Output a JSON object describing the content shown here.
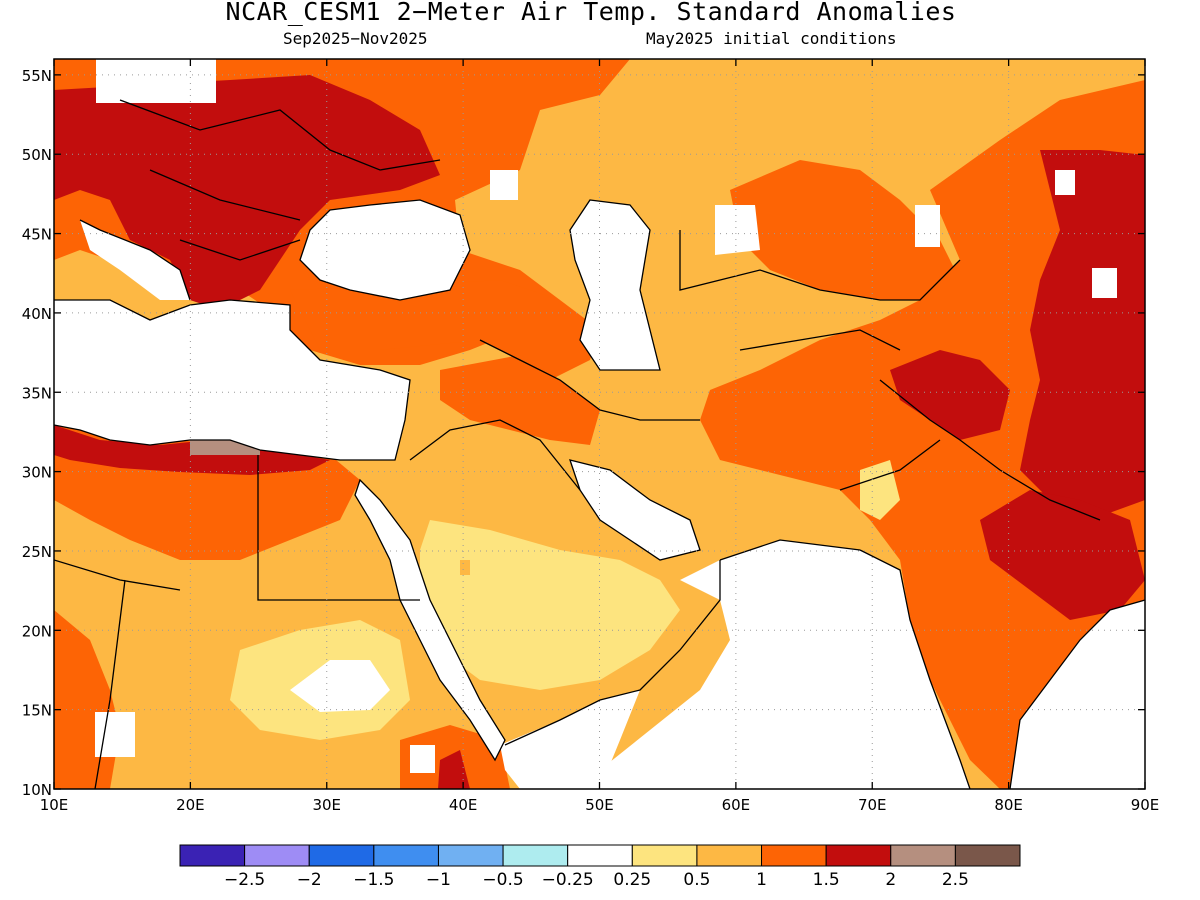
{
  "title": "NCAR_CESM1 2−Meter Air Temp. Standard Anomalies",
  "subtitle_left": "Sep2025−Nov2025",
  "subtitle_right": "May2025 initial conditions",
  "map": {
    "lon_range": [
      10,
      90
    ],
    "lat_range": [
      10,
      56
    ],
    "lon_ticks": [
      {
        "value": 10,
        "label": "10E"
      },
      {
        "value": 20,
        "label": "20E"
      },
      {
        "value": 30,
        "label": "30E"
      },
      {
        "value": 40,
        "label": "40E"
      },
      {
        "value": 50,
        "label": "50E"
      },
      {
        "value": 60,
        "label": "60E"
      },
      {
        "value": 70,
        "label": "70E"
      },
      {
        "value": 80,
        "label": "80E"
      },
      {
        "value": 90,
        "label": "90E"
      }
    ],
    "lat_ticks": [
      {
        "value": 10,
        "label": "10N"
      },
      {
        "value": 15,
        "label": "15N"
      },
      {
        "value": 20,
        "label": "20N"
      },
      {
        "value": 25,
        "label": "25N"
      },
      {
        "value": 30,
        "label": "30N"
      },
      {
        "value": 35,
        "label": "35N"
      },
      {
        "value": 40,
        "label": "40N"
      },
      {
        "value": 45,
        "label": "45N"
      },
      {
        "value": 50,
        "label": "50N"
      },
      {
        "value": 55,
        "label": "55N"
      }
    ],
    "grid": "dotted"
  },
  "legend": {
    "colors": [
      "#3a22b4",
      "#9e8cf5",
      "#1f6ae6",
      "#3f8ef0",
      "#70b0f2",
      "#aeecef",
      "#ffffff",
      "#fde47f",
      "#fdb844",
      "#fd6405",
      "#c20d0d",
      "#b58f7f",
      "#7a574a"
    ],
    "labels": [
      "−2.5",
      "−2",
      "−1.5",
      "−1",
      "−0.5",
      "−0.25",
      "0.25",
      "0.5",
      "1",
      "1.5",
      "2",
      "2.5"
    ]
  },
  "colors": {
    "frame": "#000000",
    "grid": "#9a9a9a"
  }
}
